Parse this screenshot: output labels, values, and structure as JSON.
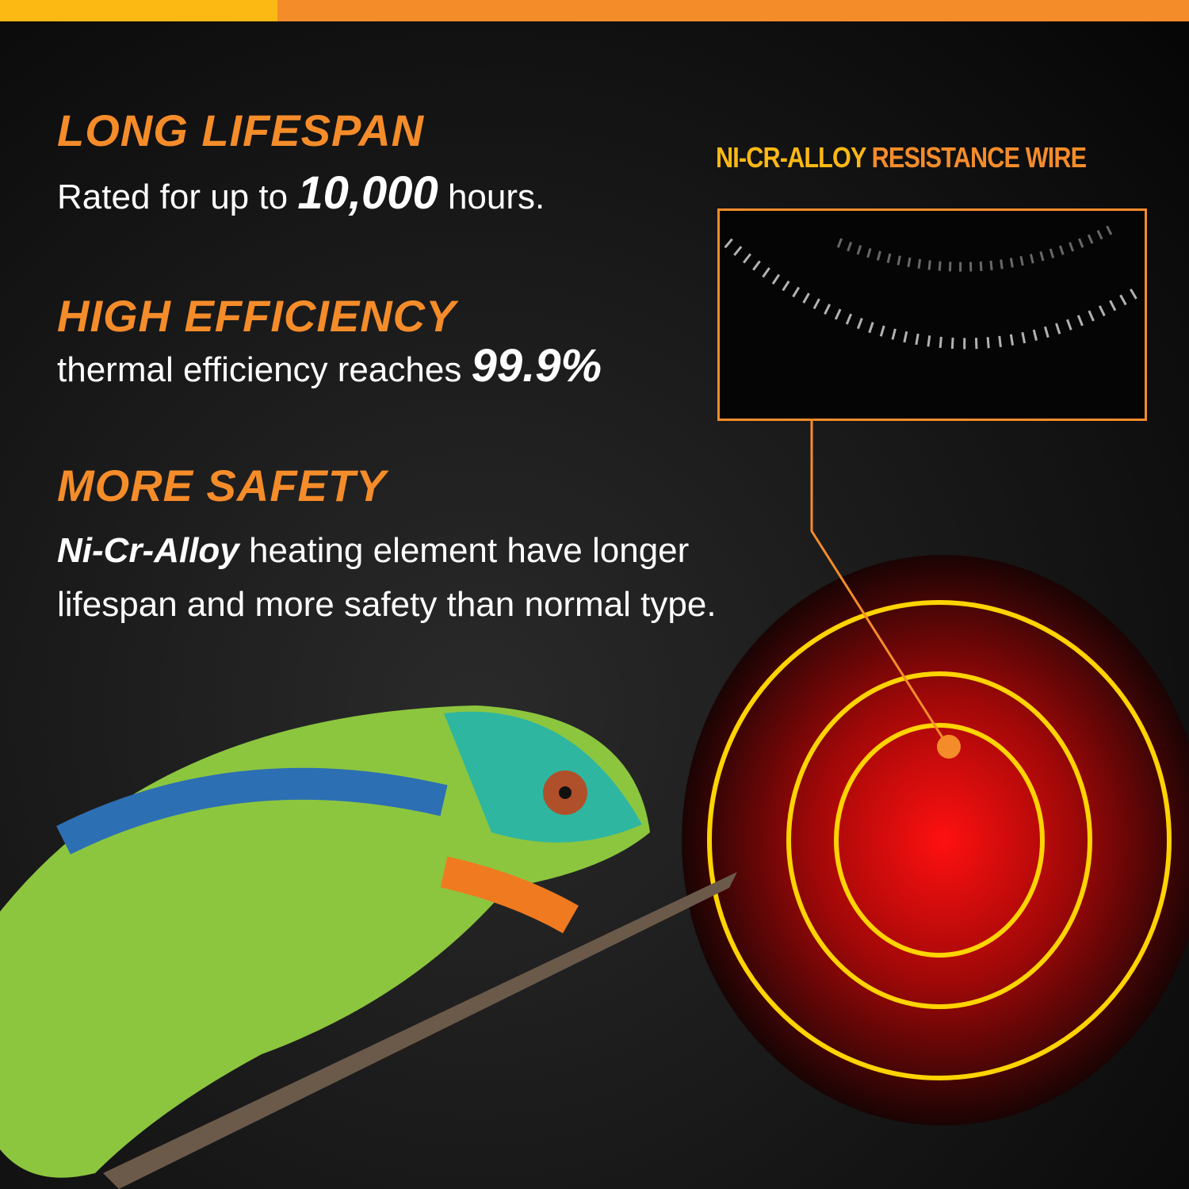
{
  "colors": {
    "accent_orange": "#F58C2A",
    "accent_yellow": "#FDB913",
    "background": "#111111"
  },
  "features": [
    {
      "title": "LONG LIFESPAN",
      "text_before": "Rated for up to",
      "highlight": "10,000",
      "text_after": "hours."
    },
    {
      "title": "HIGH EFFICIENCY",
      "text_before": "thermal efficiency reaches",
      "highlight": "99.9%"
    },
    {
      "title": "MORE SAFETY",
      "highlight": "Ni-Cr-Alloy",
      "line1_after": "heating element have longer",
      "line2": "lifespan and more safety than normal type."
    }
  ],
  "callout": {
    "label_part1": "NI-CR-ALLOY",
    "label_part2": "RESISTANCE WIRE"
  },
  "images": {
    "wire_closeup": "resistance-wire-coil-photo",
    "heater": "ceramic-heat-emitter-glowing",
    "animal": "chameleon-on-branch"
  }
}
